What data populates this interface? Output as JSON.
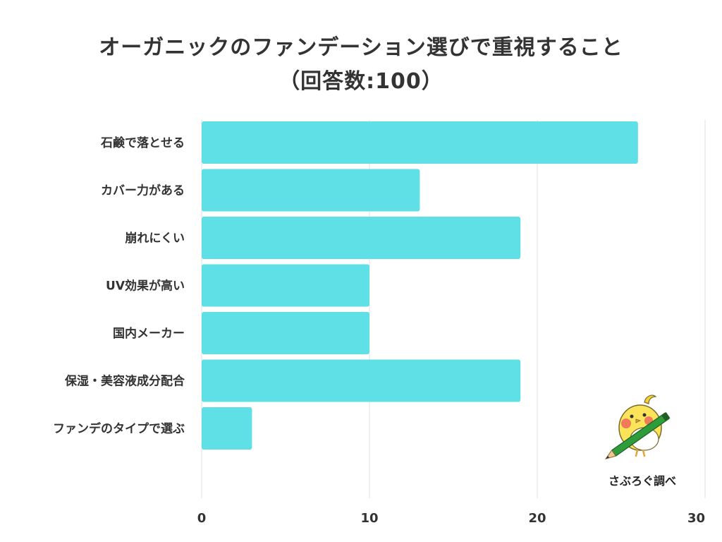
{
  "chart_data": {
    "type": "bar",
    "orientation": "horizontal",
    "title_lines": [
      "オーガニックのファンデーション選びで重視すること",
      "（回答数:100）"
    ],
    "categories": [
      "石鹸で落とせる",
      "カバー力がある",
      "崩れにくい",
      "UV効果が高い",
      "国内メーカー",
      "保湿・美容液成分配合",
      "ファンデのタイプで選ぶ"
    ],
    "values": [
      26,
      13,
      19,
      10,
      10,
      19,
      3
    ],
    "xlim": [
      0,
      30
    ],
    "xticks": [
      0,
      10,
      20,
      30
    ],
    "grid": true,
    "bar_color": "#5ee0e6",
    "grid_color": "#e0e0e0"
  },
  "credit": {
    "text": "さぶろぐ調べ",
    "icon": "bird-with-pencil-icon"
  }
}
